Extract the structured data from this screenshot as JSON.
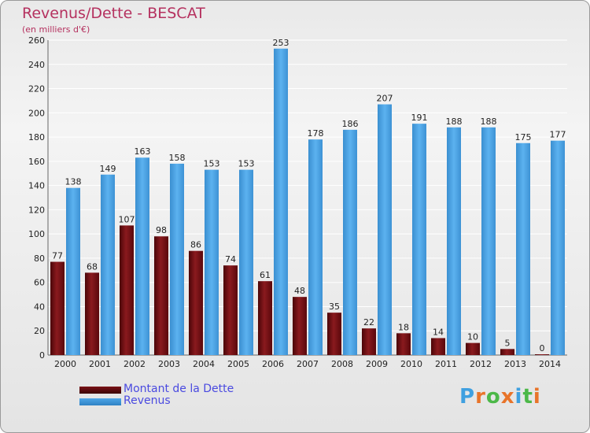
{
  "title": "Revenus/Dette - BESCAT",
  "subtitle": "(en milliers d'€)",
  "logo": {
    "text": "Proxiti",
    "letters": [
      "P",
      "r",
      "o",
      "x",
      "i",
      "t",
      "i"
    ],
    "colors": [
      "#3fa0e0",
      "#e8742a",
      "#4cb848",
      "#e8742a",
      "#3fa0e0",
      "#4cb848",
      "#e8742a"
    ]
  },
  "chart_data": {
    "type": "bar",
    "categories": [
      "2000",
      "2001",
      "2002",
      "2003",
      "2004",
      "2005",
      "2006",
      "2007",
      "2008",
      "2009",
      "2010",
      "2011",
      "2012",
      "2013",
      "2014"
    ],
    "series": [
      {
        "name": "Montant de la Dette",
        "color": "#7a1216",
        "values": [
          77,
          68,
          107,
          98,
          86,
          74,
          61,
          48,
          35,
          22,
          18,
          14,
          10,
          5,
          0
        ]
      },
      {
        "name": "Revenus",
        "color": "#4da6e8",
        "values": [
          138,
          149,
          163,
          158,
          153,
          153,
          253,
          178,
          186,
          207,
          191,
          188,
          188,
          175,
          177
        ]
      }
    ],
    "yticks": [
      0,
      20,
      40,
      60,
      80,
      100,
      120,
      140,
      160,
      180,
      200,
      220,
      240,
      260
    ],
    "ylim": [
      0,
      260
    ],
    "grid": true,
    "legend_position": "bottom-left"
  }
}
